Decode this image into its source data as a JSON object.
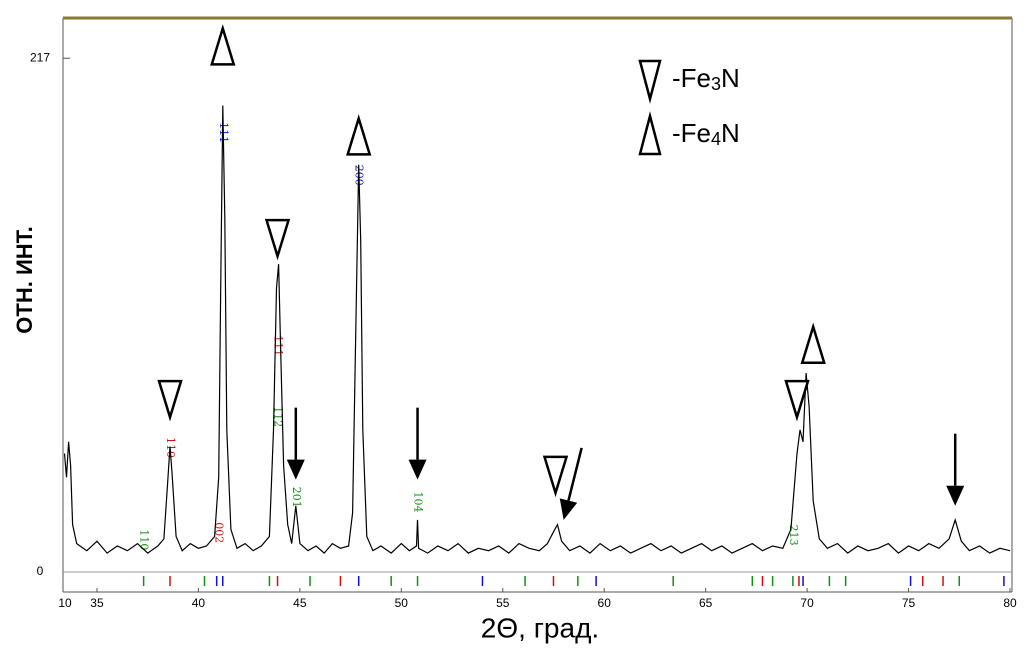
{
  "chart_data": {
    "type": "line",
    "y_label": "ОТН. ИНТ.",
    "x_label": "2Θ, град.",
    "x_break_label": "10",
    "color": "#000000",
    "xlim": [
      33.4,
      80
    ],
    "ylim": [
      0,
      234
    ],
    "xticks": [
      35,
      40,
      45,
      50,
      55,
      60,
      65,
      70,
      75,
      80
    ],
    "yticks": [
      0,
      217
    ],
    "x": [
      33.4,
      33.5,
      33.6,
      33.7,
      33.8,
      34,
      34.5,
      35,
      35.5,
      36,
      36.5,
      37,
      37.5,
      38,
      38.3,
      38.5,
      38.6,
      38.7,
      38.9,
      39.2,
      39.6,
      40,
      40.4,
      40.8,
      41.0,
      41.1,
      41.2,
      41.3,
      41.4,
      41.6,
      41.9,
      42.3,
      42.7,
      43.1,
      43.5,
      43.7,
      43.85,
      43.95,
      44.05,
      44.2,
      44.4,
      44.6,
      44.8,
      45,
      45.4,
      45.8,
      46.2,
      46.6,
      47,
      47.4,
      47.6,
      47.75,
      47.9,
      48.0,
      48.1,
      48.3,
      48.6,
      49,
      49.5,
      50,
      50.4,
      50.75,
      50.8,
      50.85,
      51.3,
      51.8,
      52.3,
      52.8,
      53.3,
      53.8,
      54.3,
      54.8,
      55.3,
      55.8,
      56.3,
      56.8,
      57.2,
      57.5,
      57.7,
      57.9,
      58.3,
      58.8,
      59.3,
      59.8,
      60.3,
      60.8,
      61.3,
      61.8,
      62.3,
      62.8,
      63.3,
      63.8,
      64.3,
      64.8,
      65.3,
      65.8,
      66.3,
      66.8,
      67.3,
      67.8,
      68.3,
      68.8,
      69.2,
      69.5,
      69.65,
      69.8,
      69.95,
      70.1,
      70.3,
      70.6,
      71,
      71.5,
      72,
      72.5,
      73,
      73.5,
      74,
      74.5,
      75,
      75.5,
      76,
      76.5,
      77,
      77.3,
      77.6,
      78,
      78.5,
      79,
      79.5,
      80
    ],
    "values": [
      50,
      40,
      55,
      45,
      20,
      12,
      9,
      13,
      8,
      11,
      9,
      12,
      8,
      11,
      14,
      40,
      53,
      42,
      15,
      9,
      12,
      10,
      11,
      15,
      40,
      120,
      197,
      150,
      60,
      18,
      10,
      12,
      9,
      11,
      15,
      60,
      120,
      130,
      95,
      45,
      20,
      12,
      28,
      12,
      9,
      11,
      8,
      12,
      10,
      11,
      25,
      100,
      172,
      140,
      60,
      15,
      9,
      11,
      8,
      12,
      9,
      11,
      22,
      10,
      8,
      11,
      9,
      12,
      8,
      10,
      9,
      11,
      8,
      12,
      10,
      9,
      12,
      17,
      20,
      13,
      9,
      11,
      8,
      12,
      9,
      11,
      8,
      10,
      12,
      9,
      11,
      8,
      10,
      12,
      9,
      11,
      8,
      10,
      12,
      9,
      11,
      10,
      18,
      50,
      60,
      55,
      84,
      70,
      30,
      14,
      10,
      12,
      8,
      11,
      9,
      10,
      12,
      8,
      11,
      9,
      12,
      10,
      14,
      22,
      13,
      9,
      11,
      8,
      10,
      9
    ],
    "reference_lines": [
      {
        "color": "#d01010",
        "positions": [
          38.6,
          43.9,
          47.0,
          57.5,
          67.8,
          69.6,
          75.7,
          76.7
        ]
      },
      {
        "color": "#109010",
        "positions": [
          37.3,
          40.3,
          43.5,
          45.5,
          49.5,
          50.8,
          56.1,
          58.7,
          63.4,
          67.3,
          68.3,
          69.3,
          71.1,
          71.9,
          77.5
        ]
      },
      {
        "color": "#1010d0",
        "positions": [
          40.9,
          41.2,
          47.9,
          54.0,
          59.6,
          69.8,
          75.1,
          79.7
        ]
      }
    ],
    "hkl_labels": [
      {
        "text": "110",
        "x": 38.6,
        "y": 57,
        "color": "#d01010"
      },
      {
        "text": "002",
        "x": 41.0,
        "y": 21,
        "color": "#d01010"
      },
      {
        "text": "111",
        "x": 41.2,
        "y": 190,
        "color": "#1010d0"
      },
      {
        "text": "111",
        "x": 43.9,
        "y": 100,
        "color": "#d01010"
      },
      {
        "text": "112",
        "x": 43.9,
        "y": 70,
        "color": "#109010"
      },
      {
        "text": "201",
        "x": 44.8,
        "y": 36,
        "color": "#109010"
      },
      {
        "text": "200",
        "x": 47.9,
        "y": 172,
        "color": "#1010d0"
      },
      {
        "text": "104",
        "x": 50.8,
        "y": 34,
        "color": "#109010"
      },
      {
        "text": "110",
        "x": 37.3,
        "y": 18,
        "color": "#109010"
      },
      {
        "text": "213",
        "x": 69.3,
        "y": 20,
        "color": "#109010"
      }
    ],
    "markers": [
      {
        "shape": "down",
        "x": 38.6,
        "y": 73
      },
      {
        "shape": "up",
        "x": 41.2,
        "y": 222
      },
      {
        "shape": "down",
        "x": 43.9,
        "y": 141
      },
      {
        "shape": "up",
        "x": 47.9,
        "y": 184
      },
      {
        "shape": "down",
        "x": 57.6,
        "y": 41
      },
      {
        "shape": "down",
        "x": 69.5,
        "y": 73
      },
      {
        "shape": "up",
        "x": 70.3,
        "y": 96
      }
    ],
    "arrows": [
      {
        "x": 44.8,
        "y": 39,
        "slant": false
      },
      {
        "x": 50.8,
        "y": 39,
        "slant": false
      },
      {
        "x": 58.0,
        "y": 22,
        "slant": true
      },
      {
        "x": 77.3,
        "y": 28,
        "slant": false
      }
    ],
    "legend": [
      {
        "shape": "down",
        "text": [
          "-Fe",
          "3",
          "N"
        ]
      },
      {
        "shape": "up",
        "text": [
          "-Fe",
          "4",
          "N"
        ]
      }
    ]
  }
}
